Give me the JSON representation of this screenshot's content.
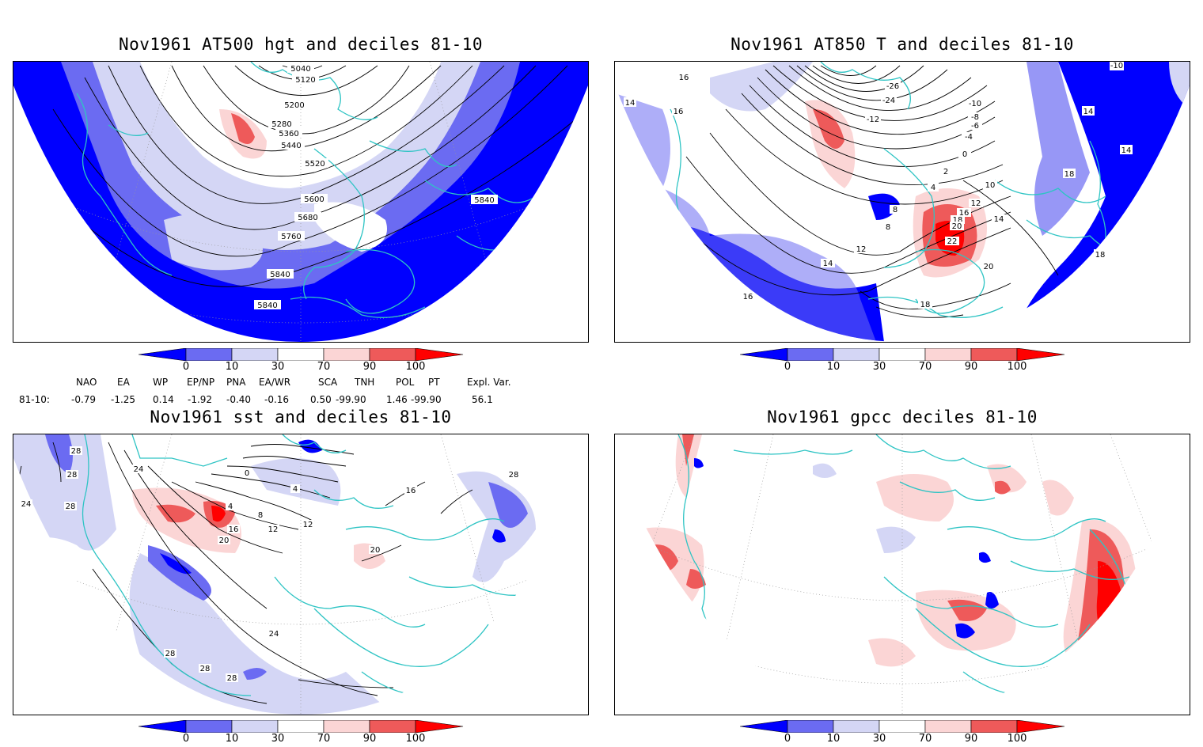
{
  "panels": {
    "p1": {
      "title": "Nov1961 AT500 hgt and deciles 81-10",
      "contour_labels": [
        "5040",
        "5120",
        "5200",
        "5280",
        "5360",
        "5440",
        "5520",
        "5600",
        "5680",
        "5760",
        "5840",
        "5840",
        "5840"
      ]
    },
    "p2": {
      "title": "Nov1961 AT850 T and deciles 81-10",
      "contour_labels": [
        "16",
        "16",
        "14",
        "14",
        "14",
        "18",
        "18",
        "-10",
        "-26",
        "-24",
        "-12",
        "-10",
        "-8",
        "-6",
        "-4",
        "-2",
        "0",
        "2",
        "4",
        "10",
        "12",
        "14",
        "16",
        "18",
        "20",
        "22",
        "8",
        "8",
        "12",
        "14",
        "20",
        "18",
        "16"
      ]
    },
    "p3": {
      "title": "Nov1961 sst and deciles 81-10",
      "contour_labels": [
        "28",
        "28",
        "28",
        "24",
        "24",
        "20",
        "16",
        "12",
        "12",
        "8",
        "4",
        "4",
        "0",
        "20",
        "16",
        "28",
        "28",
        "28",
        "28",
        "24"
      ]
    },
    "p4": {
      "title": "Nov1961 gpcc deciles 81-10",
      "contour_labels": []
    }
  },
  "colorbar": {
    "ticks": [
      "0",
      "10",
      "30",
      "70",
      "90",
      "100"
    ],
    "colors": [
      "#0000ff",
      "#6b6bf2",
      "#d4d6f5",
      "#ffffff",
      "#fbd5d5",
      "#ee5a5a",
      "#ff0000"
    ]
  },
  "indices": {
    "headers": [
      "NAO",
      "EA",
      "WP",
      "EP/NP",
      "PNA",
      "EA/WR",
      "SCA",
      "TNH",
      "POL",
      "PT",
      "Expl. Var."
    ],
    "row_label": "81-10:",
    "values": [
      "-0.79",
      "-1.25",
      "0.14",
      "-1.92",
      "-0.40",
      "-0.16",
      "0.50",
      "-99.90",
      "1.46",
      "-99.90",
      "56.1"
    ]
  },
  "colors": {
    "coastline": "#2ec4c4",
    "contour": "#000000",
    "grid": "#9a9a9a"
  }
}
